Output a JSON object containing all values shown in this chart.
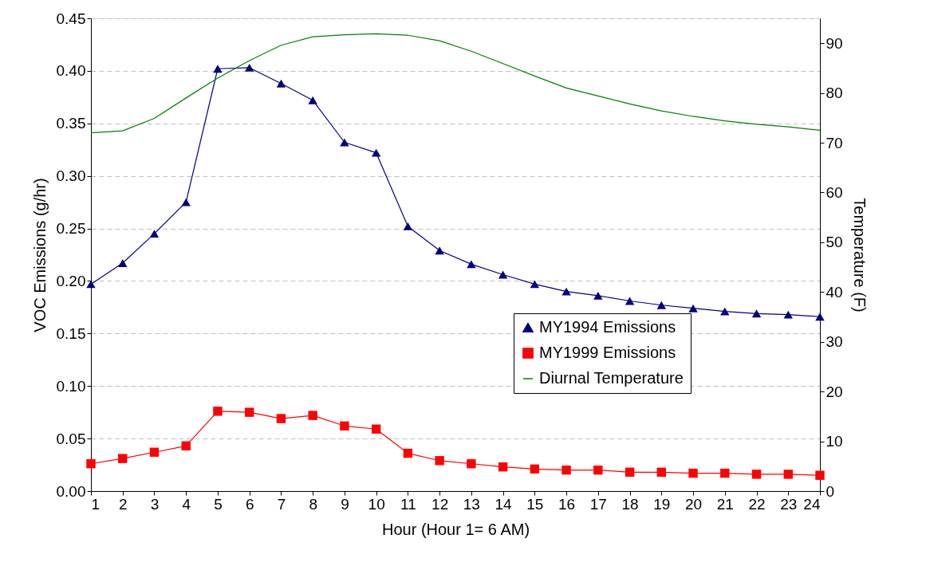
{
  "chart_data": {
    "type": "line",
    "xlabel": "Hour (Hour 1= 6 AM)",
    "ylabel": "VOC Emissions (g/hr)",
    "y2label": "Temperature (F)",
    "x": [
      1,
      2,
      3,
      4,
      5,
      6,
      7,
      8,
      9,
      10,
      11,
      12,
      13,
      14,
      15,
      16,
      17,
      18,
      19,
      20,
      21,
      22,
      23,
      24
    ],
    "xlim": [
      1,
      24
    ],
    "xticks": [
      1,
      2,
      3,
      4,
      5,
      6,
      7,
      8,
      9,
      10,
      11,
      12,
      13,
      14,
      15,
      16,
      17,
      18,
      19,
      20,
      21,
      22,
      23,
      24
    ],
    "ylim": [
      0,
      0.45
    ],
    "yticks": [
      {
        "value": 0,
        "label": "0.00"
      },
      {
        "value": 0.05,
        "label": "0.05"
      },
      {
        "value": 0.1,
        "label": "0.10"
      },
      {
        "value": 0.15,
        "label": "0.15"
      },
      {
        "value": 0.2,
        "label": "0.20"
      },
      {
        "value": 0.25,
        "label": "0.25"
      },
      {
        "value": 0.3,
        "label": "0.30"
      },
      {
        "value": 0.35,
        "label": "0.35"
      },
      {
        "value": 0.4,
        "label": "0.40"
      },
      {
        "value": 0.45,
        "label": "0.45"
      }
    ],
    "y2lim": [
      0,
      95
    ],
    "y2ticks": [
      0,
      10,
      20,
      30,
      40,
      50,
      60,
      70,
      80,
      90
    ],
    "grid": "y",
    "legend": "bottom right",
    "line_style": "solid",
    "series": [
      {
        "name": "MY1994 Emissions",
        "color": "#000080",
        "marker": "triangle",
        "values": [
          0.197,
          0.217,
          0.245,
          0.275,
          0.402,
          0.403,
          0.388,
          0.372,
          0.332,
          0.322,
          0.252,
          0.229,
          0.216,
          0.206,
          0.197,
          0.19,
          0.186,
          0.181,
          0.177,
          0.174,
          0.171,
          0.169,
          0.168,
          0.166
        ]
      },
      {
        "name": "MY1999 Emissions",
        "color": "#ff0000",
        "marker": "square",
        "values": [
          0.026,
          0.031,
          0.037,
          0.043,
          0.076,
          0.075,
          0.069,
          0.072,
          0.062,
          0.059,
          0.036,
          0.029,
          0.026,
          0.023,
          0.021,
          0.02,
          0.02,
          0.018,
          0.018,
          0.017,
          0.017,
          0.016,
          0.016,
          0.015
        ]
      },
      {
        "name": "Diurnal Temperature",
        "color": "#008000",
        "marker": "none",
        "axis": "y2",
        "values": [
          72.0,
          72.4,
          74.9,
          79.0,
          83.0,
          86.5,
          89.6,
          91.3,
          91.7,
          91.9,
          91.6,
          90.5,
          88.4,
          85.9,
          83.4,
          81.0,
          79.4,
          77.8,
          76.4,
          75.3,
          74.4,
          73.7,
          73.2,
          72.5
        ]
      }
    ]
  }
}
